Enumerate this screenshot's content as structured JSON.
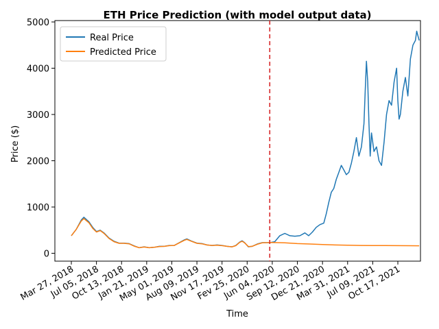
{
  "chart_data": {
    "type": "line",
    "title": "ETH Price Prediction (with model output data)",
    "xlabel": "Time",
    "ylabel": "Price ($)",
    "x_ticks": [
      "Mar 27, 2018",
      "Jul 05, 2018",
      "Oct 13, 2018",
      "Jan 21, 2019",
      "May 01, 2019",
      "Aug 09, 2019",
      "Nov 17, 2019",
      "Fev 25, 2020",
      "Jun 04, 2020",
      "Sep 12, 2020",
      "Dec 21, 2020",
      "Mar 31, 2021",
      "Jul 09, 2021",
      "Oct 17, 2021"
    ],
    "ylim": [
      -170,
      5030
    ],
    "y_ticks": [
      0,
      1000,
      2000,
      3000,
      4000,
      5000
    ],
    "grid": false,
    "legend_position": "top-left",
    "split_marker": {
      "x_index": 7.9,
      "color": "#d62728",
      "style": "dashed"
    },
    "series": [
      {
        "name": "Real Price",
        "color": "#1f77b4",
        "points": [
          [
            0,
            380
          ],
          [
            0.2,
            520
          ],
          [
            0.4,
            720
          ],
          [
            0.5,
            780
          ],
          [
            0.7,
            680
          ],
          [
            0.85,
            560
          ],
          [
            1.0,
            470
          ],
          [
            1.15,
            500
          ],
          [
            1.3,
            440
          ],
          [
            1.5,
            330
          ],
          [
            1.7,
            260
          ],
          [
            1.9,
            220
          ],
          [
            2.1,
            220
          ],
          [
            2.3,
            210
          ],
          [
            2.5,
            160
          ],
          [
            2.7,
            120
          ],
          [
            2.9,
            140
          ],
          [
            3.1,
            120
          ],
          [
            3.3,
            130
          ],
          [
            3.5,
            150
          ],
          [
            3.7,
            150
          ],
          [
            3.9,
            170
          ],
          [
            4.1,
            170
          ],
          [
            4.3,
            230
          ],
          [
            4.5,
            290
          ],
          [
            4.6,
            310
          ],
          [
            4.8,
            260
          ],
          [
            5.0,
            220
          ],
          [
            5.2,
            210
          ],
          [
            5.4,
            180
          ],
          [
            5.6,
            170
          ],
          [
            5.8,
            180
          ],
          [
            6.0,
            170
          ],
          [
            6.2,
            150
          ],
          [
            6.4,
            140
          ],
          [
            6.55,
            170
          ],
          [
            6.7,
            240
          ],
          [
            6.8,
            270
          ],
          [
            6.9,
            230
          ],
          [
            7.05,
            140
          ],
          [
            7.2,
            150
          ],
          [
            7.4,
            200
          ],
          [
            7.6,
            230
          ],
          [
            7.8,
            230
          ],
          [
            7.9,
            230
          ],
          [
            8.1,
            250
          ],
          [
            8.3,
            380
          ],
          [
            8.5,
            430
          ],
          [
            8.7,
            380
          ],
          [
            8.9,
            370
          ],
          [
            9.1,
            380
          ],
          [
            9.3,
            440
          ],
          [
            9.45,
            380
          ],
          [
            9.6,
            460
          ],
          [
            9.75,
            560
          ],
          [
            9.9,
            620
          ],
          [
            10.05,
            650
          ],
          [
            10.15,
            850
          ],
          [
            10.25,
            1100
          ],
          [
            10.35,
            1320
          ],
          [
            10.45,
            1400
          ],
          [
            10.55,
            1600
          ],
          [
            10.65,
            1750
          ],
          [
            10.75,
            1900
          ],
          [
            10.85,
            1800
          ],
          [
            10.95,
            1700
          ],
          [
            11.05,
            1750
          ],
          [
            11.15,
            1950
          ],
          [
            11.25,
            2200
          ],
          [
            11.35,
            2500
          ],
          [
            11.45,
            2100
          ],
          [
            11.55,
            2300
          ],
          [
            11.65,
            2800
          ],
          [
            11.7,
            3500
          ],
          [
            11.75,
            4150
          ],
          [
            11.8,
            3700
          ],
          [
            11.85,
            2800
          ],
          [
            11.9,
            2100
          ],
          [
            11.95,
            2600
          ],
          [
            12.0,
            2400
          ],
          [
            12.05,
            2200
          ],
          [
            12.15,
            2300
          ],
          [
            12.25,
            2000
          ],
          [
            12.35,
            1900
          ],
          [
            12.45,
            2400
          ],
          [
            12.55,
            3000
          ],
          [
            12.65,
            3300
          ],
          [
            12.75,
            3200
          ],
          [
            12.85,
            3700
          ],
          [
            12.95,
            4000
          ],
          [
            13.0,
            3300
          ],
          [
            13.05,
            2900
          ],
          [
            13.1,
            3000
          ],
          [
            13.2,
            3500
          ],
          [
            13.3,
            3800
          ],
          [
            13.4,
            3400
          ],
          [
            13.5,
            4200
          ],
          [
            13.6,
            4500
          ],
          [
            13.7,
            4600
          ],
          [
            13.75,
            4800
          ],
          [
            13.85,
            4600
          ]
        ]
      },
      {
        "name": "Predicted Price",
        "color": "#ff7f0e",
        "points": [
          [
            0,
            380
          ],
          [
            0.2,
            520
          ],
          [
            0.4,
            700
          ],
          [
            0.5,
            750
          ],
          [
            0.7,
            660
          ],
          [
            0.85,
            540
          ],
          [
            1.0,
            460
          ],
          [
            1.15,
            490
          ],
          [
            1.3,
            430
          ],
          [
            1.5,
            320
          ],
          [
            1.7,
            250
          ],
          [
            1.9,
            215
          ],
          [
            2.1,
            215
          ],
          [
            2.3,
            205
          ],
          [
            2.5,
            155
          ],
          [
            2.7,
            120
          ],
          [
            2.9,
            135
          ],
          [
            3.1,
            120
          ],
          [
            3.3,
            130
          ],
          [
            3.5,
            145
          ],
          [
            3.7,
            150
          ],
          [
            3.9,
            165
          ],
          [
            4.1,
            170
          ],
          [
            4.3,
            225
          ],
          [
            4.5,
            280
          ],
          [
            4.6,
            300
          ],
          [
            4.8,
            255
          ],
          [
            5.0,
            215
          ],
          [
            5.2,
            205
          ],
          [
            5.4,
            180
          ],
          [
            5.6,
            170
          ],
          [
            5.8,
            175
          ],
          [
            6.0,
            165
          ],
          [
            6.2,
            150
          ],
          [
            6.4,
            140
          ],
          [
            6.55,
            165
          ],
          [
            6.7,
            235
          ],
          [
            6.8,
            260
          ],
          [
            6.9,
            225
          ],
          [
            7.05,
            145
          ],
          [
            7.2,
            150
          ],
          [
            7.4,
            195
          ],
          [
            7.6,
            225
          ],
          [
            7.8,
            230
          ],
          [
            7.9,
            235
          ],
          [
            8.5,
            225
          ],
          [
            9.0,
            210
          ],
          [
            9.5,
            200
          ],
          [
            10.0,
            190
          ],
          [
            10.5,
            180
          ],
          [
            11.0,
            175
          ],
          [
            11.5,
            170
          ],
          [
            12.0,
            168
          ],
          [
            12.5,
            166
          ],
          [
            13.0,
            165
          ],
          [
            13.5,
            163
          ],
          [
            13.85,
            162
          ]
        ]
      }
    ]
  }
}
